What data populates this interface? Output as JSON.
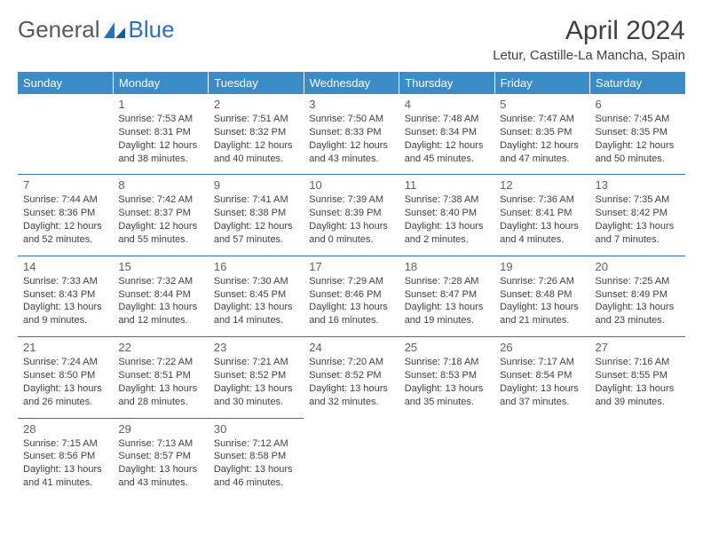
{
  "logo": {
    "text1": "General",
    "text2": "Blue"
  },
  "title": "April 2024",
  "location": "Letur, Castille-La Mancha, Spain",
  "colors": {
    "header_bg": "#3b8bc7",
    "header_text": "#ffffff",
    "border": "#2a72b5",
    "text": "#404040",
    "logo_gray": "#5a5a5a",
    "logo_blue": "#2a72b5"
  },
  "weekdays": [
    "Sunday",
    "Monday",
    "Tuesday",
    "Wednesday",
    "Thursday",
    "Friday",
    "Saturday"
  ],
  "weeks": [
    [
      null,
      {
        "n": "1",
        "sr": "Sunrise: 7:53 AM",
        "ss": "Sunset: 8:31 PM",
        "d1": "Daylight: 12 hours",
        "d2": "and 38 minutes."
      },
      {
        "n": "2",
        "sr": "Sunrise: 7:51 AM",
        "ss": "Sunset: 8:32 PM",
        "d1": "Daylight: 12 hours",
        "d2": "and 40 minutes."
      },
      {
        "n": "3",
        "sr": "Sunrise: 7:50 AM",
        "ss": "Sunset: 8:33 PM",
        "d1": "Daylight: 12 hours",
        "d2": "and 43 minutes."
      },
      {
        "n": "4",
        "sr": "Sunrise: 7:48 AM",
        "ss": "Sunset: 8:34 PM",
        "d1": "Daylight: 12 hours",
        "d2": "and 45 minutes."
      },
      {
        "n": "5",
        "sr": "Sunrise: 7:47 AM",
        "ss": "Sunset: 8:35 PM",
        "d1": "Daylight: 12 hours",
        "d2": "and 47 minutes."
      },
      {
        "n": "6",
        "sr": "Sunrise: 7:45 AM",
        "ss": "Sunset: 8:35 PM",
        "d1": "Daylight: 12 hours",
        "d2": "and 50 minutes."
      }
    ],
    [
      {
        "n": "7",
        "sr": "Sunrise: 7:44 AM",
        "ss": "Sunset: 8:36 PM",
        "d1": "Daylight: 12 hours",
        "d2": "and 52 minutes."
      },
      {
        "n": "8",
        "sr": "Sunrise: 7:42 AM",
        "ss": "Sunset: 8:37 PM",
        "d1": "Daylight: 12 hours",
        "d2": "and 55 minutes."
      },
      {
        "n": "9",
        "sr": "Sunrise: 7:41 AM",
        "ss": "Sunset: 8:38 PM",
        "d1": "Daylight: 12 hours",
        "d2": "and 57 minutes."
      },
      {
        "n": "10",
        "sr": "Sunrise: 7:39 AM",
        "ss": "Sunset: 8:39 PM",
        "d1": "Daylight: 13 hours",
        "d2": "and 0 minutes."
      },
      {
        "n": "11",
        "sr": "Sunrise: 7:38 AM",
        "ss": "Sunset: 8:40 PM",
        "d1": "Daylight: 13 hours",
        "d2": "and 2 minutes."
      },
      {
        "n": "12",
        "sr": "Sunrise: 7:36 AM",
        "ss": "Sunset: 8:41 PM",
        "d1": "Daylight: 13 hours",
        "d2": "and 4 minutes."
      },
      {
        "n": "13",
        "sr": "Sunrise: 7:35 AM",
        "ss": "Sunset: 8:42 PM",
        "d1": "Daylight: 13 hours",
        "d2": "and 7 minutes."
      }
    ],
    [
      {
        "n": "14",
        "sr": "Sunrise: 7:33 AM",
        "ss": "Sunset: 8:43 PM",
        "d1": "Daylight: 13 hours",
        "d2": "and 9 minutes."
      },
      {
        "n": "15",
        "sr": "Sunrise: 7:32 AM",
        "ss": "Sunset: 8:44 PM",
        "d1": "Daylight: 13 hours",
        "d2": "and 12 minutes."
      },
      {
        "n": "16",
        "sr": "Sunrise: 7:30 AM",
        "ss": "Sunset: 8:45 PM",
        "d1": "Daylight: 13 hours",
        "d2": "and 14 minutes."
      },
      {
        "n": "17",
        "sr": "Sunrise: 7:29 AM",
        "ss": "Sunset: 8:46 PM",
        "d1": "Daylight: 13 hours",
        "d2": "and 16 minutes."
      },
      {
        "n": "18",
        "sr": "Sunrise: 7:28 AM",
        "ss": "Sunset: 8:47 PM",
        "d1": "Daylight: 13 hours",
        "d2": "and 19 minutes."
      },
      {
        "n": "19",
        "sr": "Sunrise: 7:26 AM",
        "ss": "Sunset: 8:48 PM",
        "d1": "Daylight: 13 hours",
        "d2": "and 21 minutes."
      },
      {
        "n": "20",
        "sr": "Sunrise: 7:25 AM",
        "ss": "Sunset: 8:49 PM",
        "d1": "Daylight: 13 hours",
        "d2": "and 23 minutes."
      }
    ],
    [
      {
        "n": "21",
        "sr": "Sunrise: 7:24 AM",
        "ss": "Sunset: 8:50 PM",
        "d1": "Daylight: 13 hours",
        "d2": "and 26 minutes."
      },
      {
        "n": "22",
        "sr": "Sunrise: 7:22 AM",
        "ss": "Sunset: 8:51 PM",
        "d1": "Daylight: 13 hours",
        "d2": "and 28 minutes."
      },
      {
        "n": "23",
        "sr": "Sunrise: 7:21 AM",
        "ss": "Sunset: 8:52 PM",
        "d1": "Daylight: 13 hours",
        "d2": "and 30 minutes."
      },
      {
        "n": "24",
        "sr": "Sunrise: 7:20 AM",
        "ss": "Sunset: 8:52 PM",
        "d1": "Daylight: 13 hours",
        "d2": "and 32 minutes."
      },
      {
        "n": "25",
        "sr": "Sunrise: 7:18 AM",
        "ss": "Sunset: 8:53 PM",
        "d1": "Daylight: 13 hours",
        "d2": "and 35 minutes."
      },
      {
        "n": "26",
        "sr": "Sunrise: 7:17 AM",
        "ss": "Sunset: 8:54 PM",
        "d1": "Daylight: 13 hours",
        "d2": "and 37 minutes."
      },
      {
        "n": "27",
        "sr": "Sunrise: 7:16 AM",
        "ss": "Sunset: 8:55 PM",
        "d1": "Daylight: 13 hours",
        "d2": "and 39 minutes."
      }
    ],
    [
      {
        "n": "28",
        "sr": "Sunrise: 7:15 AM",
        "ss": "Sunset: 8:56 PM",
        "d1": "Daylight: 13 hours",
        "d2": "and 41 minutes."
      },
      {
        "n": "29",
        "sr": "Sunrise: 7:13 AM",
        "ss": "Sunset: 8:57 PM",
        "d1": "Daylight: 13 hours",
        "d2": "and 43 minutes."
      },
      {
        "n": "30",
        "sr": "Sunrise: 7:12 AM",
        "ss": "Sunset: 8:58 PM",
        "d1": "Daylight: 13 hours",
        "d2": "and 46 minutes."
      },
      null,
      null,
      null,
      null
    ]
  ]
}
